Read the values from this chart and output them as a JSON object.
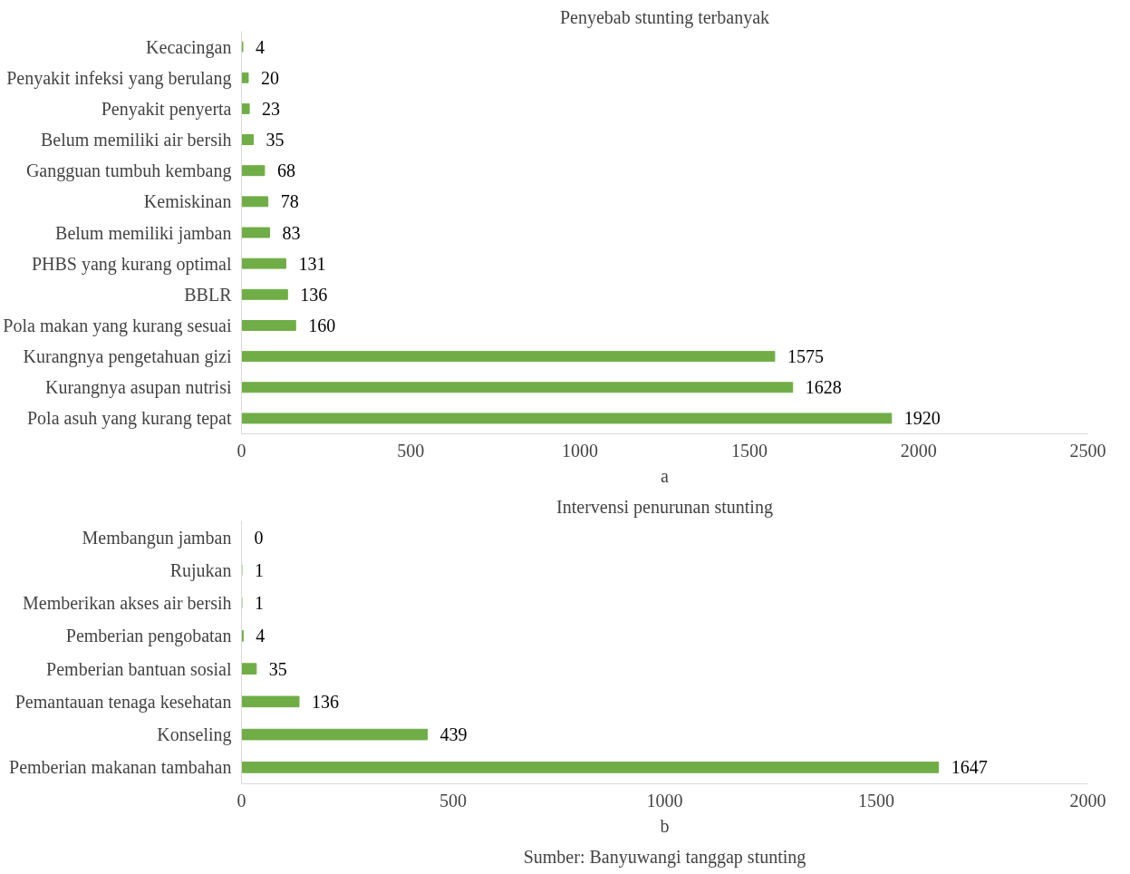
{
  "chart_data": [
    {
      "type": "bar",
      "orientation": "horizontal",
      "title": "Penyebab stunting terbanyak",
      "categories": [
        "Kecacingan",
        "Penyakit infeksi yang berulang",
        "Penyakit penyerta",
        "Belum memiliki air bersih",
        "Gangguan tumbuh kembang",
        "Kemiskinan",
        "Belum memiliki jamban",
        "PHBS yang kurang optimal",
        "BBLR",
        "Pola makan yang kurang sesuai",
        "Kurangnya pengetahuan gizi",
        "Kurangnya asupan nutrisi",
        "Pola asuh yang kurang tepat"
      ],
      "values": [
        4,
        20,
        23,
        35,
        68,
        78,
        83,
        131,
        136,
        160,
        1575,
        1628,
        1920
      ],
      "color": "#70ad47",
      "xlim": [
        0,
        2500
      ],
      "xticks": [
        0,
        500,
        1000,
        1500,
        2000,
        2500
      ],
      "data_labels": true,
      "annotations": [
        "a"
      ]
    },
    {
      "type": "bar",
      "orientation": "horizontal",
      "title": "Intervensi penurunan stunting",
      "categories": [
        "Membangun jamban",
        "Rujukan",
        "Memberikan akses air bersih",
        "Pemberian pengobatan",
        "Pemberian bantuan sosial",
        "Pemantauan tenaga kesehatan",
        "Konseling",
        "Pemberian makanan tambahan"
      ],
      "values": [
        0,
        1,
        1,
        4,
        35,
        136,
        439,
        1647
      ],
      "color": "#70ad47",
      "xlim": [
        0,
        2000
      ],
      "xticks": [
        0,
        500,
        1000,
        1500,
        2000
      ],
      "data_labels": true,
      "annotations": [
        "b",
        "Sumber: Banyuwangi tanggap stunting"
      ]
    }
  ]
}
